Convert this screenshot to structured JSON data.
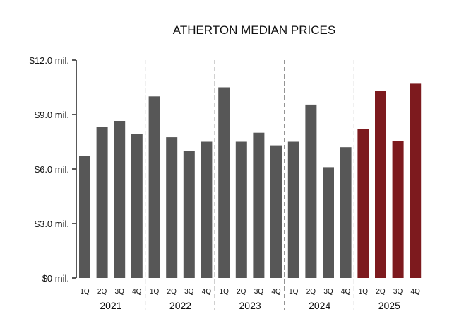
{
  "chart_data": {
    "type": "bar",
    "title": "ATHERTON MEDIAN PRICES",
    "xlabel": "",
    "ylabel": "",
    "ylim": [
      0,
      12.0
    ],
    "y_ticks": [
      {
        "value": 0,
        "label": "$0 mil."
      },
      {
        "value": 3.0,
        "label": "$3.0 mil."
      },
      {
        "value": 6.0,
        "label": "$6.0 mil."
      },
      {
        "value": 9.0,
        "label": "$9.0 mil."
      },
      {
        "value": 12.0,
        "label": "$12.0 mil."
      }
    ],
    "grid": false,
    "colors": {
      "default": "#575757",
      "highlight": "#7d1a1e",
      "axis": "#222222",
      "divider": "#666666"
    },
    "groups": [
      {
        "year": "2021",
        "quarters": [
          "1Q",
          "2Q",
          "3Q",
          "4Q"
        ],
        "values": [
          6.7,
          8.3,
          8.65,
          7.95
        ],
        "highlight": false
      },
      {
        "year": "2022",
        "quarters": [
          "1Q",
          "2Q",
          "3Q",
          "4Q"
        ],
        "values": [
          10.0,
          7.75,
          7.0,
          7.5
        ],
        "highlight": false
      },
      {
        "year": "2023",
        "quarters": [
          "1Q",
          "2Q",
          "3Q",
          "4Q"
        ],
        "values": [
          10.5,
          7.5,
          8.0,
          7.3
        ],
        "highlight": false
      },
      {
        "year": "2024",
        "quarters": [
          "1Q",
          "2Q",
          "3Q",
          "4Q"
        ],
        "values": [
          7.5,
          9.55,
          6.1,
          7.2
        ],
        "highlight": false
      },
      {
        "year": "2025",
        "quarters": [
          "1Q",
          "2Q",
          "3Q",
          "4Q"
        ],
        "values": [
          8.2,
          10.3,
          7.55,
          10.7
        ],
        "highlight": true
      }
    ]
  }
}
